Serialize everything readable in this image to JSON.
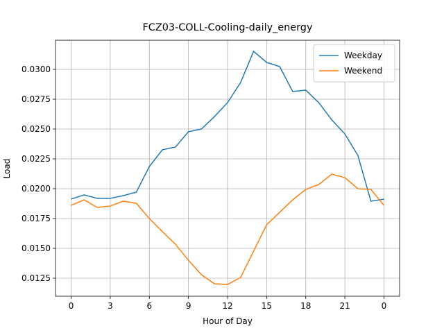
{
  "chart_data": {
    "type": "line",
    "title": "FCZ03-COLL-Cooling-daily_energy",
    "x_label": "Hour of Day",
    "y_label": "Load",
    "x": [
      0,
      1,
      2,
      3,
      4,
      5,
      6,
      7,
      8,
      9,
      10,
      11,
      12,
      13,
      14,
      15,
      16,
      17,
      18,
      19,
      20,
      21,
      22,
      23,
      24
    ],
    "series": [
      {
        "name": "Weekday",
        "color": "#1f77b4",
        "values": [
          0.01913,
          0.01948,
          0.01919,
          0.01919,
          0.01942,
          0.01971,
          0.02186,
          0.02326,
          0.02349,
          0.02477,
          0.025,
          0.02605,
          0.02721,
          0.0289,
          0.03151,
          0.03058,
          0.03023,
          0.02814,
          0.02826,
          0.02721,
          0.02576,
          0.02459,
          0.02279,
          0.01895,
          0.01913
        ]
      },
      {
        "name": "Weekend",
        "color": "#ff7f0e",
        "values": [
          0.0186,
          0.01907,
          0.01843,
          0.01855,
          0.01895,
          0.01878,
          0.0175,
          0.0164,
          0.01535,
          0.01401,
          0.01279,
          0.01203,
          0.01198,
          0.01256,
          0.01477,
          0.01698,
          0.01802,
          0.01907,
          0.01994,
          0.02035,
          0.02122,
          0.02093,
          0.02,
          0.01994,
          0.0186
        ]
      }
    ],
    "xlim": [
      -1.2,
      25.2
    ],
    "ylim": [
      0.01099,
      0.03244
    ],
    "xticks": [
      0,
      3,
      6,
      9,
      12,
      15,
      18,
      21,
      {
        "value": 24,
        "label": "0"
      }
    ],
    "yticks": [
      0.0125,
      {
        "value": 0.015,
        "label": "0.0150"
      },
      0.0175,
      {
        "value": 0.02,
        "label": "0.0200"
      },
      0.0225,
      {
        "value": 0.025,
        "label": "0.0250"
      },
      0.0275,
      {
        "value": 0.03,
        "label": "0.0300"
      }
    ],
    "grid": true,
    "legend": "upper right"
  }
}
